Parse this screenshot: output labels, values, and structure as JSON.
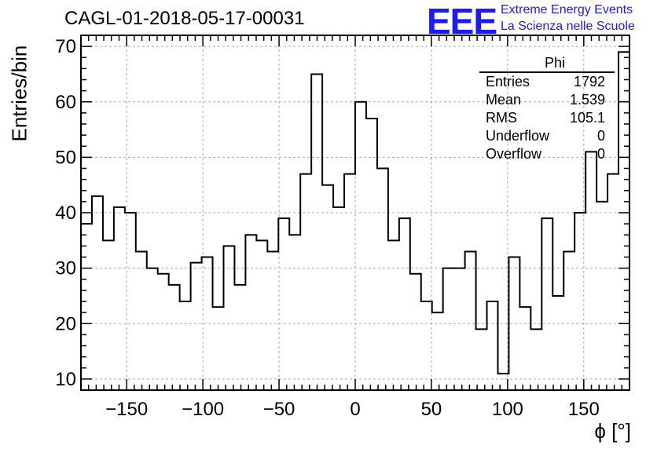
{
  "header": {
    "title": "CAGL-01-2018-05-17-00031",
    "logo_text": "EEE",
    "logo_line1": "Extreme Energy Events",
    "logo_line2": "La Scienza nelle Scuole"
  },
  "stats": {
    "name": "Phi",
    "rows": [
      {
        "label": "Entries",
        "value": "1792"
      },
      {
        "label": "Mean",
        "value": "1.539"
      },
      {
        "label": "RMS",
        "value": "105.1"
      },
      {
        "label": "Underflow",
        "value": "0"
      },
      {
        "label": "Overflow",
        "value": "0"
      }
    ]
  },
  "chart_data": {
    "type": "histogram",
    "title": "CAGL-01-2018-05-17-00031",
    "xlabel": "ϕ [°]",
    "ylabel": "Entries/bin",
    "xlim": [
      -180,
      180
    ],
    "ylim": [
      8,
      72
    ],
    "bin_width": 7.2,
    "x_ticks": [
      -150,
      -100,
      -50,
      0,
      50,
      100,
      150
    ],
    "y_ticks": [
      10,
      20,
      30,
      40,
      50,
      60,
      70
    ],
    "grid": true,
    "values": [
      38,
      43,
      35,
      41,
      40,
      33,
      30,
      29,
      27,
      24,
      31,
      32,
      23,
      34,
      27,
      36,
      35,
      33,
      39,
      36,
      47,
      65,
      45,
      41,
      47,
      60,
      57,
      48,
      35,
      39,
      29,
      24,
      22,
      30,
      30,
      33,
      19,
      24,
      11,
      32,
      23,
      19,
      39,
      25,
      33,
      40,
      51,
      42,
      47,
      69
    ]
  }
}
